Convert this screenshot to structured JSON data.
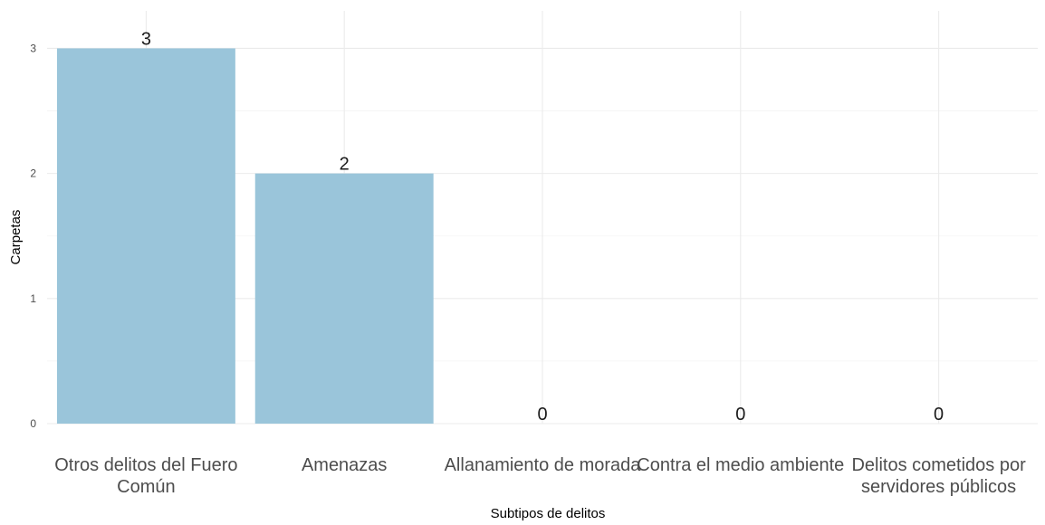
{
  "chart_data": {
    "type": "bar",
    "title": "",
    "xlabel": "Subtipos de delitos",
    "ylabel": "Carpetas",
    "categories": [
      [
        "Otros delitos del Fuero",
        "Común"
      ],
      [
        "Amenazas"
      ],
      [
        "Allanamiento de morada"
      ],
      [
        "Contra el medio ambiente"
      ],
      [
        "Delitos cometidos por",
        "servidores públicos"
      ]
    ],
    "values": [
      3,
      2,
      0,
      0,
      0
    ],
    "data_labels": [
      "3",
      "2",
      "0",
      "0",
      "0"
    ],
    "y_ticks": [
      0,
      1,
      2,
      3
    ],
    "ylim": [
      0,
      3.3
    ],
    "grid": true,
    "legend": "none",
    "colors": {
      "bar": "#9ac5da",
      "grid": "#ebebeb",
      "text": "#4d4d4d"
    }
  }
}
